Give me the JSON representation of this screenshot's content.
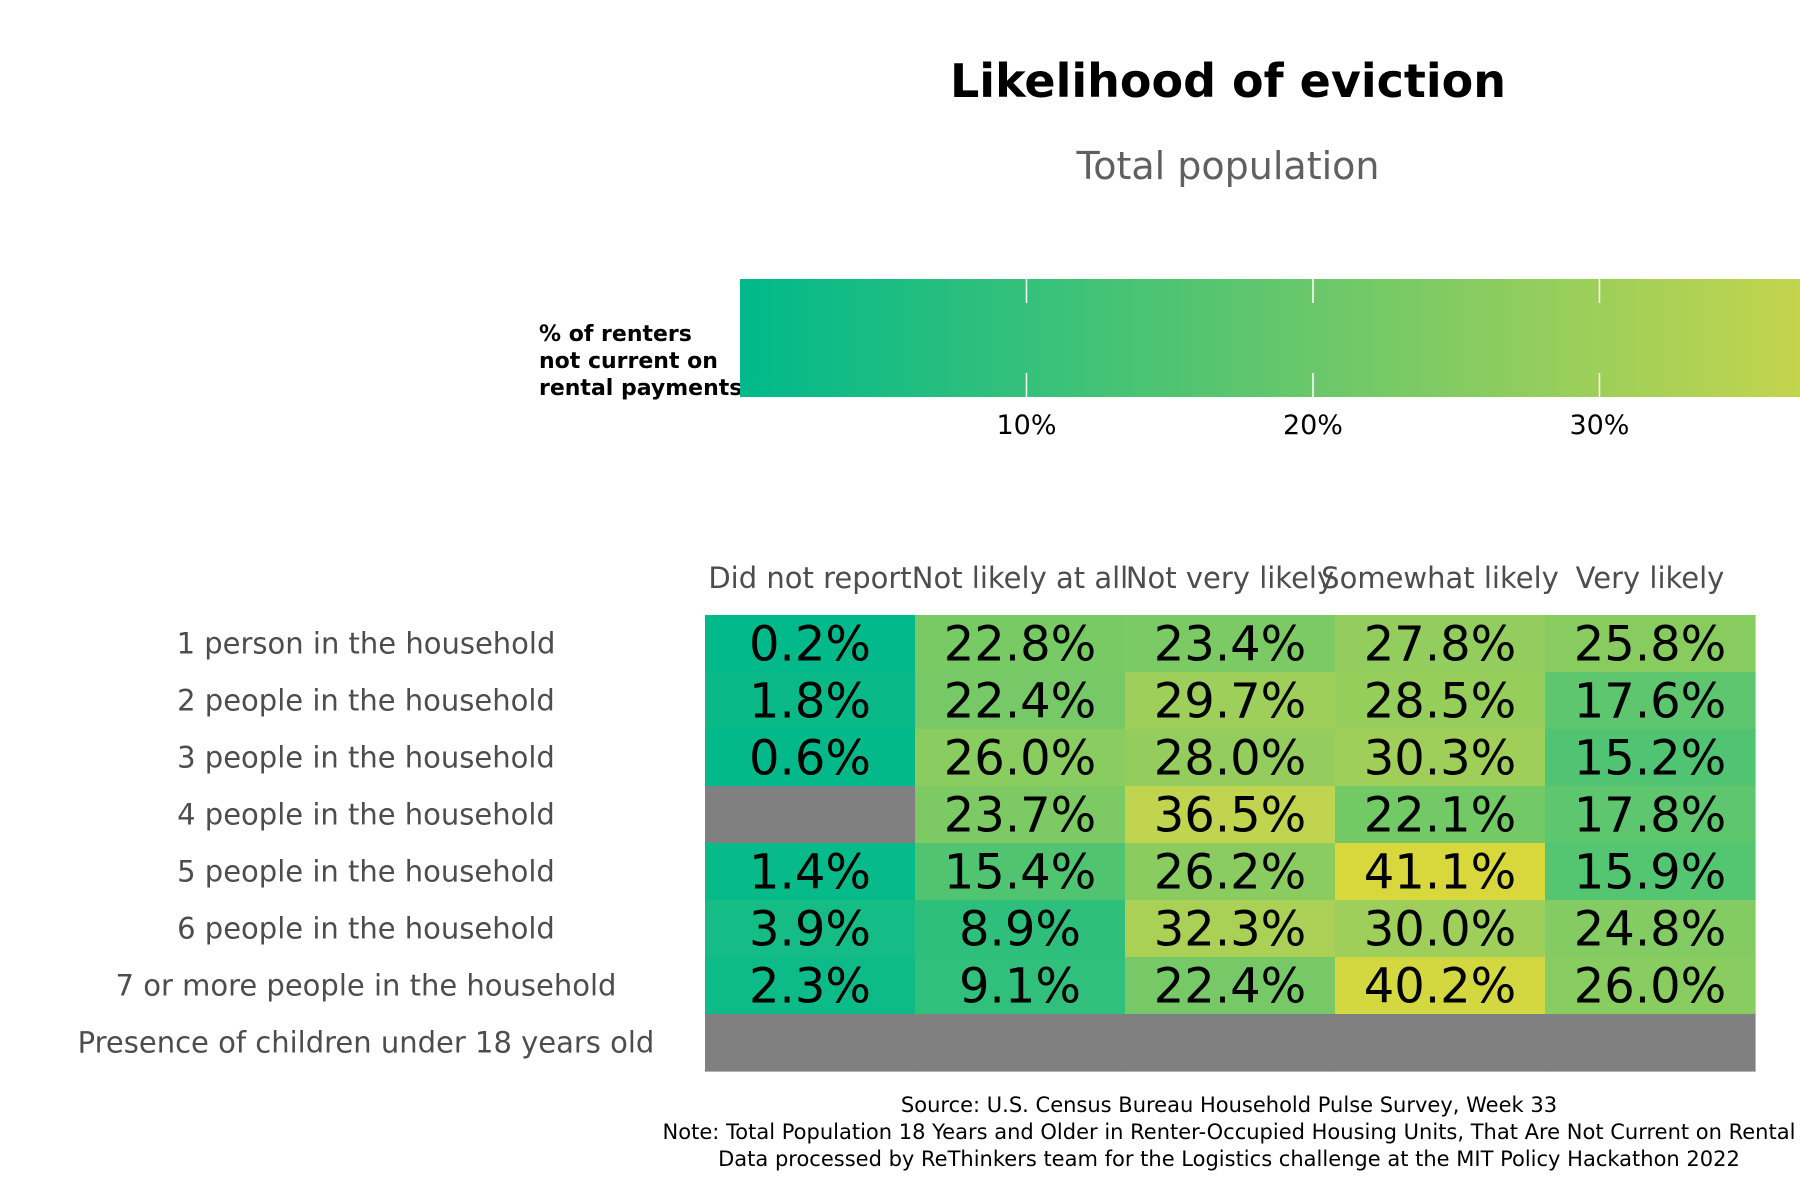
{
  "chart_data": {
    "type": "heatmap",
    "title": "Likelihood of eviction",
    "subtitle": "Total population",
    "legend": {
      "title_lines": [
        "% of renters",
        "not current on",
        "rental payments"
      ],
      "ticks": [
        10,
        20,
        30
      ],
      "tick_labels": [
        "10%",
        "20%",
        "30%"
      ],
      "range": [
        0,
        37
      ],
      "colors": [
        "#00b98b",
        "#c3d44e"
      ],
      "placement": "top"
    },
    "columns": [
      "Did not report",
      "Not likely at all",
      "Not very likely",
      "Somewhat likely",
      "Very likely"
    ],
    "rows": [
      "1 person in the household",
      "2 people in the household",
      "3 people in the household",
      "4 people in the household",
      "5 people in the household",
      "6 people in the household",
      "7 or more people in the household",
      "Presence of children under 18 years old"
    ],
    "values": [
      [
        0.2,
        22.8,
        23.4,
        27.8,
        25.8
      ],
      [
        1.8,
        22.4,
        29.7,
        28.5,
        17.6
      ],
      [
        0.6,
        26.0,
        28.0,
        30.3,
        15.2
      ],
      [
        null,
        23.7,
        36.5,
        22.1,
        17.8
      ],
      [
        1.4,
        15.4,
        26.2,
        41.1,
        15.9
      ],
      [
        3.9,
        8.9,
        32.3,
        30.0,
        24.8
      ],
      [
        2.3,
        9.1,
        22.4,
        40.2,
        26.0
      ],
      [
        null,
        null,
        null,
        null,
        null
      ]
    ],
    "labels": [
      [
        "0.2%",
        "22.8%",
        "23.4%",
        "27.8%",
        "25.8%"
      ],
      [
        "1.8%",
        "22.4%",
        "29.7%",
        "28.5%",
        "17.6%"
      ],
      [
        "0.6%",
        "26.0%",
        "28.0%",
        "30.3%",
        "15.2%"
      ],
      [
        "",
        "23.7%",
        "36.5%",
        "22.1%",
        "17.8%"
      ],
      [
        "1.4%",
        "15.4%",
        "26.2%",
        "41.1%",
        "15.9%"
      ],
      [
        "3.9%",
        "8.9%",
        "32.3%",
        "30.0%",
        "24.8%"
      ],
      [
        "2.3%",
        "9.1%",
        "22.4%",
        "40.2%",
        "26.0%"
      ],
      [
        "",
        "",
        "",
        "",
        ""
      ]
    ],
    "missing_color": "#808080",
    "high_color": "#d8d83c",
    "caption_lines": [
      "Source: U.S. Census Bureau Household Pulse Survey, Week 33",
      "Note: Total Population 18 Years and Older in Renter-Occupied Housing Units, That Are Not Current on Rental",
      "Data processed by ReThinkers team for the Logistics challenge at the MIT Policy Hackathon 2022"
    ]
  }
}
